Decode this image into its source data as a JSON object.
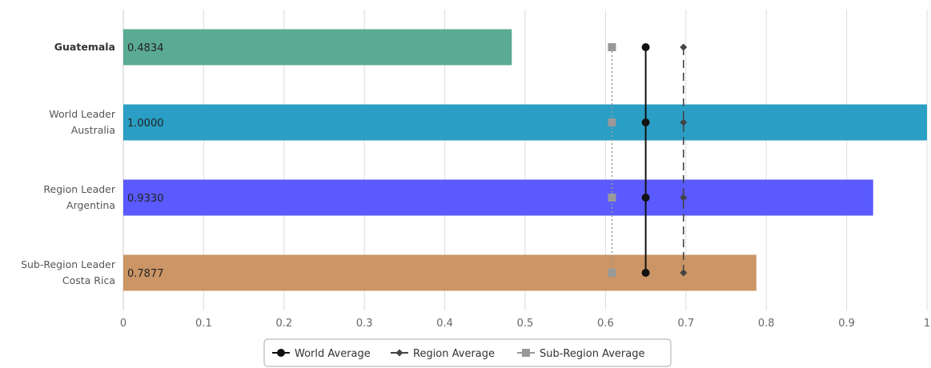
{
  "chart_data": {
    "type": "bar",
    "orientation": "horizontal",
    "categories": [
      {
        "lines": [
          "Guatemala"
        ],
        "bold": true
      },
      {
        "lines": [
          "World Leader",
          "Australia"
        ],
        "bold": false
      },
      {
        "lines": [
          "Region Leader",
          "Argentina"
        ],
        "bold": false
      },
      {
        "lines": [
          "Sub-Region Leader",
          "Costa Rica"
        ],
        "bold": false
      }
    ],
    "values": [
      0.4834,
      1.0,
      0.933,
      0.7877
    ],
    "value_labels": [
      "0.4834",
      "1.0000",
      "0.9330",
      "0.7877"
    ],
    "bar_colors": [
      "#5bab94",
      "#2a9ec4",
      "#5a5aff",
      "#cc9566"
    ],
    "xlim": [
      0,
      1
    ],
    "xticks": [
      0,
      0.1,
      0.2,
      0.3,
      0.4,
      0.5,
      0.6,
      0.7,
      0.8,
      0.9,
      1
    ],
    "xtick_labels": [
      "0",
      "0.1",
      "0.2",
      "0.3",
      "0.4",
      "0.5",
      "0.6",
      "0.7",
      "0.8",
      "0.9",
      "1"
    ],
    "grid": true,
    "reference_series": [
      {
        "name": "World Average",
        "value": 0.65,
        "color": "#111111",
        "line_style": "solid",
        "marker": "circle"
      },
      {
        "name": "Region Average",
        "value": 0.697,
        "color": "#444444",
        "line_style": "dashed",
        "marker": "diamond"
      },
      {
        "name": "Sub-Region Average",
        "value": 0.608,
        "color": "#999999",
        "line_style": "dotted",
        "marker": "square"
      }
    ],
    "legend_position": "bottom-center"
  }
}
